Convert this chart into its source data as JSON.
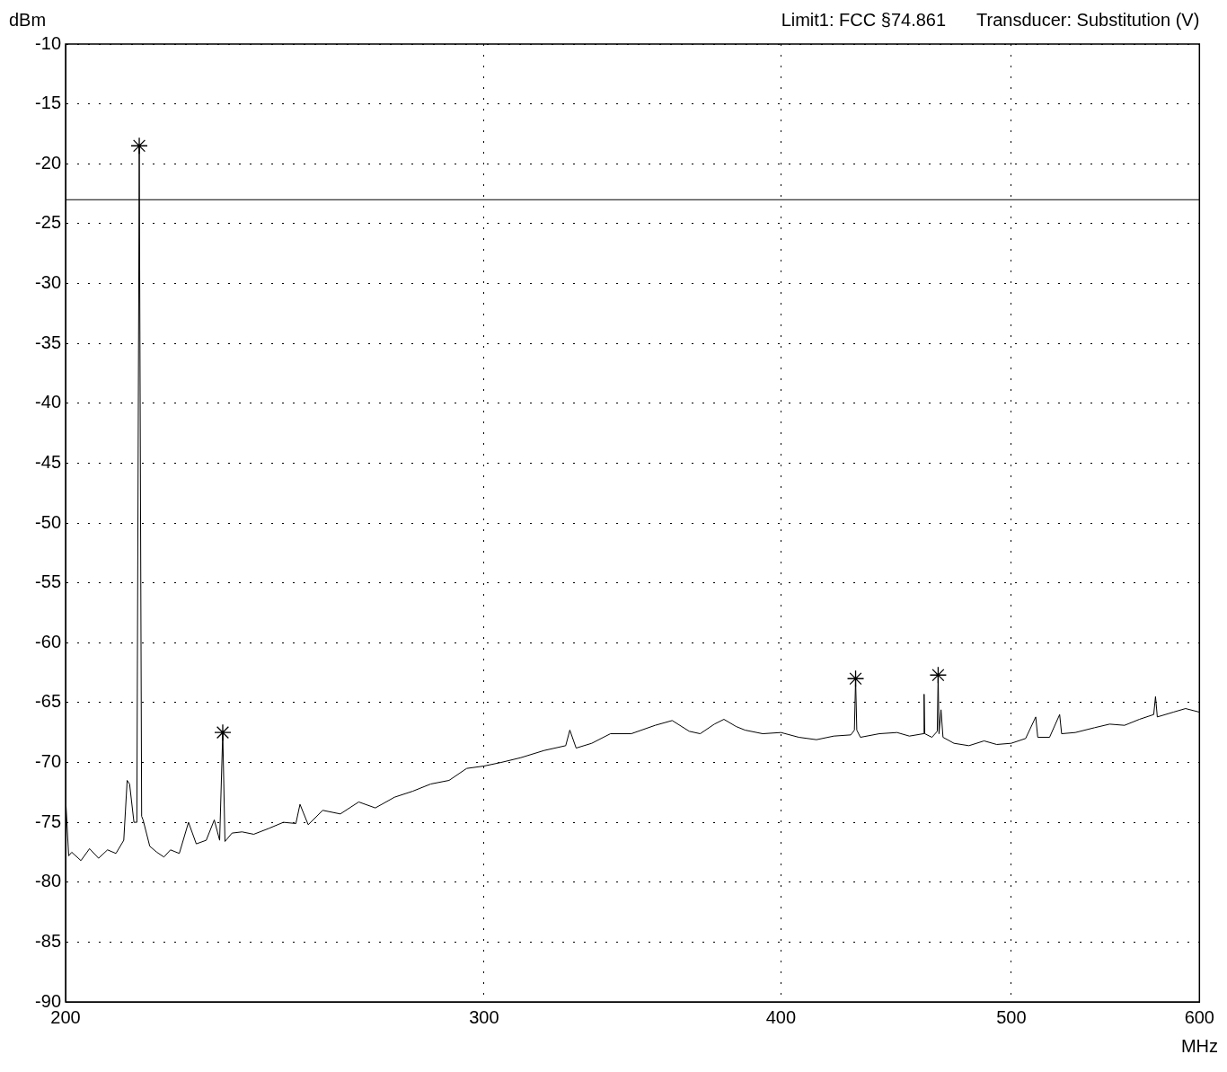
{
  "chart_data": {
    "type": "line",
    "xlabel": "MHz",
    "ylabel": "dBm",
    "log": "x",
    "grid": true,
    "legend": false,
    "annotations": [
      "Limit1: FCC §74.861",
      "Transducer: Substitution (V)"
    ],
    "xlim": [
      200,
      600
    ],
    "xticks": [
      200,
      300,
      400,
      500,
      600
    ],
    "ylim": [
      -90,
      -10
    ],
    "yticks": [
      -90,
      -85,
      -80,
      -75,
      -70,
      -65,
      -60,
      -55,
      -50,
      -45,
      -40,
      -35,
      -30,
      -25,
      -20,
      -15,
      -10
    ],
    "ref_lines": [
      {
        "axis": "y",
        "value": -23,
        "color": "#000000",
        "line_style": "solid"
      }
    ],
    "series": [
      {
        "type": "line",
        "color": "#000000",
        "marker": "none",
        "x": [
          200,
          200.6,
          201.2,
          203,
          204.7,
          206.5,
          208.3,
          210,
          211.6,
          212.3,
          212.8,
          213.7,
          214.3,
          214.8,
          215.3,
          215.6,
          217,
          218.5,
          220,
          221.4,
          223.3,
          225.3,
          227,
          229.2,
          231,
          232.2,
          232.9,
          233.4,
          235,
          237.3,
          240,
          243.6,
          247,
          250,
          251,
          253,
          256.6,
          261,
          265.7,
          270,
          275.1,
          280,
          284.9,
          290,
          295,
          300,
          305,
          310.9,
          318,
          324.7,
          326,
          328,
          333,
          339.1,
          346,
          354.1,
          360,
          366,
          369.9,
          375,
          378.5,
          383,
          386.3,
          393,
          400,
          407,
          414,
          421,
          428,
          429.5,
          430,
          430.5,
          432,
          440,
          447.6,
          453,
          459.2,
          459.5,
          459.8,
          463,
          465.4,
          465.8,
          466.2,
          467.1,
          468,
          473,
          479.9,
          487,
          493,
          500,
          507,
          512,
          513,
          518.9,
          524,
          525,
          532,
          542,
          550,
          558,
          566.1,
          574,
          575,
          576,
          585,
          592,
          600
        ],
        "values": [
          -72.9,
          -77.8,
          -77.5,
          -78.2,
          -77.2,
          -78.0,
          -77.3,
          -77.6,
          -76.5,
          -71.5,
          -71.8,
          -75.0,
          -75.0,
          -18.5,
          -74.5,
          -74.8,
          -77.0,
          -77.5,
          -77.9,
          -77.3,
          -77.6,
          -75.0,
          -76.8,
          -76.5,
          -74.8,
          -76.5,
          -67.5,
          -76.6,
          -75.9,
          -75.8,
          -76.0,
          -75.5,
          -75.0,
          -75.1,
          -73.5,
          -75.2,
          -74.0,
          -74.3,
          -73.3,
          -73.8,
          -72.9,
          -72.4,
          -71.8,
          -71.5,
          -70.5,
          -70.3,
          -70.0,
          -69.6,
          -69.0,
          -68.6,
          -67.3,
          -68.8,
          -68.4,
          -67.6,
          -67.6,
          -66.9,
          -66.5,
          -67.4,
          -67.6,
          -66.8,
          -66.4,
          -67.0,
          -67.3,
          -67.6,
          -67.5,
          -67.9,
          -68.1,
          -67.8,
          -67.7,
          -67.3,
          -63.0,
          -67.3,
          -67.9,
          -67.6,
          -67.5,
          -67.8,
          -67.6,
          -64.3,
          -67.6,
          -67.9,
          -67.4,
          -62.7,
          -67.6,
          -65.6,
          -67.9,
          -68.4,
          -68.6,
          -68.2,
          -68.5,
          -68.4,
          -68.0,
          -66.2,
          -67.9,
          -67.9,
          -66.0,
          -67.6,
          -67.5,
          -67.1,
          -66.8,
          -66.9,
          -66.4,
          -66.0,
          -64.5,
          -66.2,
          -65.8,
          -65.5,
          -65.8
        ]
      },
      {
        "type": "scatter",
        "color": "#000000",
        "marker": "cross",
        "x": [
          214.8,
          232.9,
          430,
          465.8
        ],
        "values": [
          -18.5,
          -67.5,
          -63.0,
          -62.7
        ]
      }
    ]
  }
}
